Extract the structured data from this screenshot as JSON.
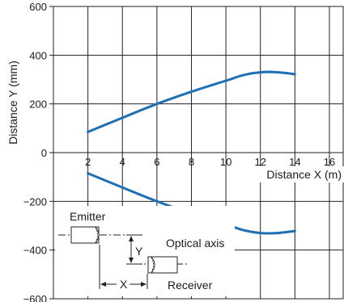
{
  "chart_data": {
    "type": "line",
    "xlabel": "Distance X (m)",
    "ylabel": "Distance Y (mm)",
    "xlim": [
      0,
      16.8
    ],
    "ylim": [
      -600,
      600
    ],
    "x_ticks": [
      2,
      4,
      6,
      8,
      10,
      12,
      14,
      16
    ],
    "y_ticks": [
      -600,
      -400,
      -200,
      0,
      200,
      400,
      600
    ],
    "x_tick_labels": [
      "2",
      "4",
      "6",
      "8",
      "10",
      "12",
      "14",
      "16"
    ],
    "y_tick_labels": [
      "−600",
      "−400",
      "−200",
      "0",
      "200",
      "400",
      "600"
    ],
    "grid": true,
    "line_color": "#1f6fb5",
    "series": [
      {
        "x": [
          2,
          4,
          6,
          8,
          10,
          11,
          12,
          13,
          14
        ],
        "y": [
          85,
          143,
          200,
          250,
          295,
          318,
          330,
          330,
          322
        ]
      },
      {
        "x": [
          2,
          4,
          6,
          8,
          10,
          11,
          12,
          13,
          14
        ],
        "y": [
          -85,
          -143,
          -200,
          -250,
          -295,
          -318,
          -330,
          -330,
          -322
        ]
      }
    ]
  },
  "diagram": {
    "emitter_label": "Emitter",
    "receiver_label": "Receiver",
    "optical_axis_label": "Optical axis",
    "x_label": "X",
    "y_label": "Y"
  }
}
